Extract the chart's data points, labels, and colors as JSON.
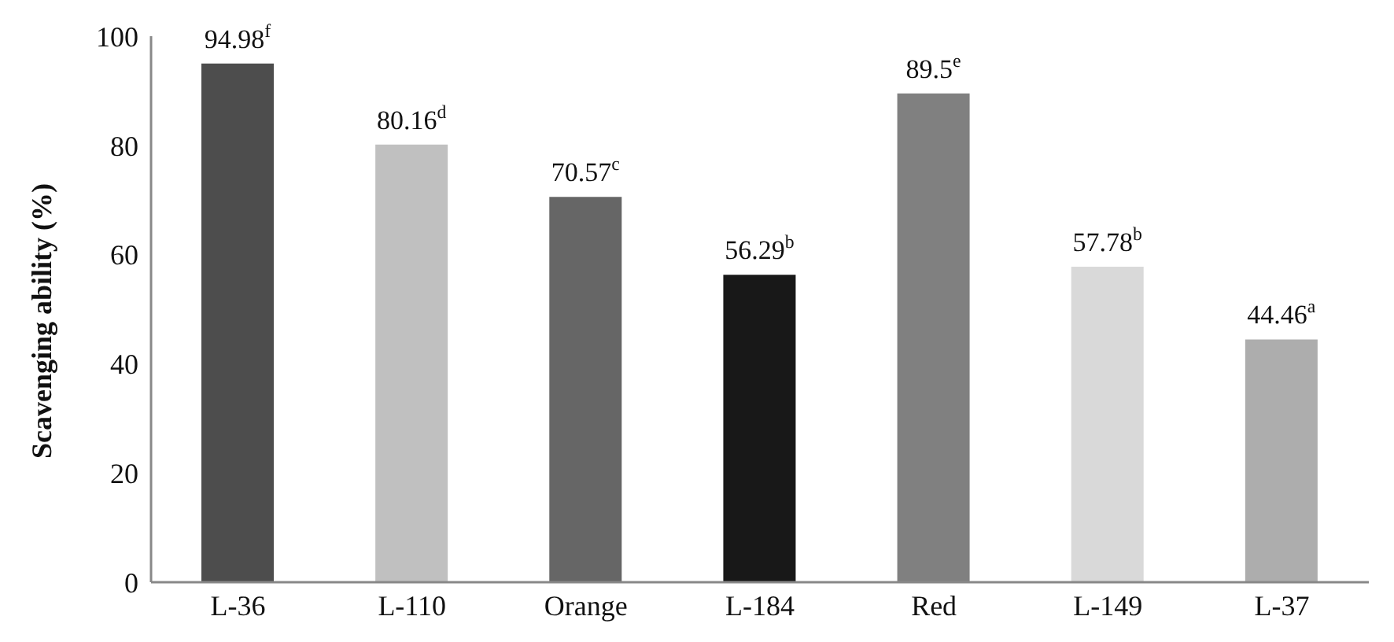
{
  "chart_data": {
    "type": "bar",
    "ylabel": "Scavenging ability (%)",
    "categories": [
      "L-36",
      "L-110",
      "Orange",
      "L-184",
      "Red",
      "L-149",
      "L-37"
    ],
    "values": [
      94.98,
      80.16,
      70.57,
      56.29,
      89.5,
      57.78,
      44.46
    ],
    "value_labels": [
      "94.98$^{f}$",
      "80.16$^{d}$",
      "70.57$^{c}$",
      "56.29$^{b}$",
      "89.5$^{e}$",
      "57.78$^{b}$",
      "44.46$^{a}$"
    ],
    "colors": [
      "#4d4d4d",
      "#c0c0c0",
      "#666666",
      "#181818",
      "#808080",
      "#d9d9d9",
      "#adadad"
    ],
    "ylim": [
      0,
      100
    ],
    "yticks": [
      0,
      20,
      40,
      60,
      80,
      100
    ],
    "grid": false,
    "legend": false
  }
}
